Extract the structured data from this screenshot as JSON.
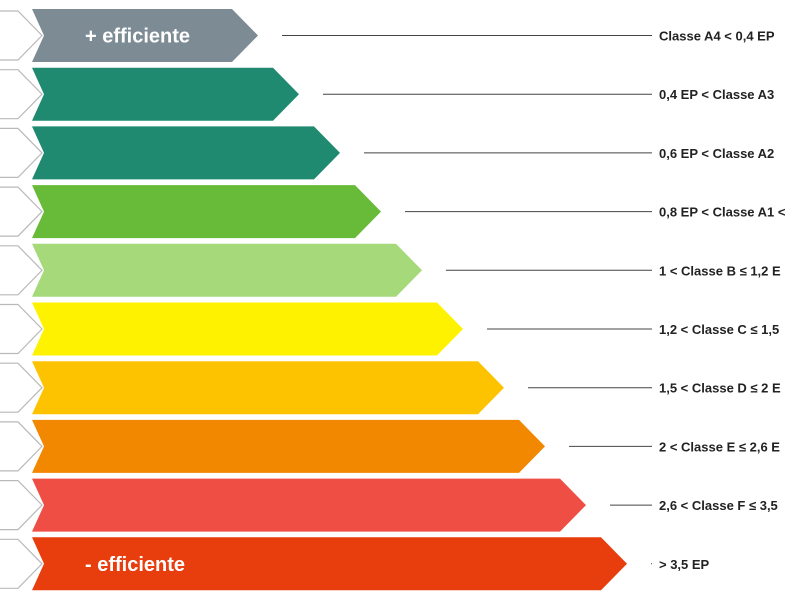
{
  "classes": [
    {
      "id": "A4",
      "color": "#7d8b94",
      "label": "+ efficiente",
      "range": "Classe A4 < 0,4 EP"
    },
    {
      "id": "A3",
      "color": "#1f8a70",
      "label": "",
      "range": "0,4 EP < Classe A3"
    },
    {
      "id": "A2",
      "color": "#1f8a70",
      "label": "",
      "range": "0,6 EP < Classe A2"
    },
    {
      "id": "A1",
      "color": "#67bb39",
      "label": "",
      "range": "0,8 EP < Classe A1 <"
    },
    {
      "id": "B",
      "color": "#a5d97a",
      "label": "",
      "range": "1 < Classe B ≤ 1,2 E"
    },
    {
      "id": "C",
      "color": "#fff200",
      "label": "",
      "range": "1,2 < Classe C ≤ 1,5"
    },
    {
      "id": "D",
      "color": "#fdc300",
      "label": "",
      "range": "1,5 < Classe D ≤ 2 E"
    },
    {
      "id": "E",
      "color": "#f28700",
      "label": "",
      "range": "2 < Classe E ≤ 2,6 E"
    },
    {
      "id": "F",
      "color": "#ef4e44",
      "label": "",
      "range": "2,6 < Classe F ≤ 3,5"
    },
    {
      "id": "G",
      "color": "#e83d0d",
      "label": "- efficiente",
      "range": "> 3,5 EP"
    }
  ]
}
